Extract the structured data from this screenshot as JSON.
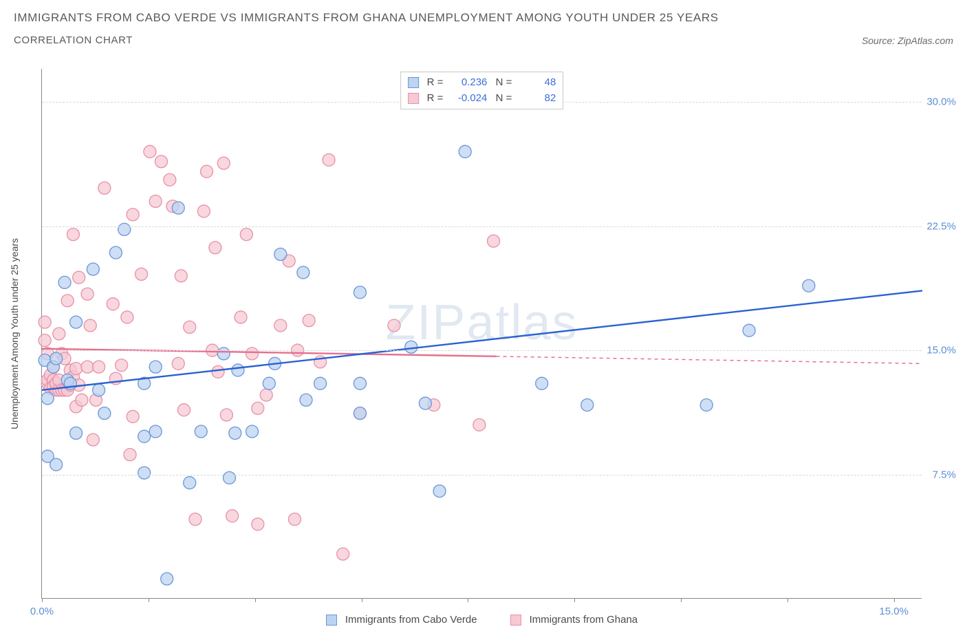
{
  "header": {
    "title": "IMMIGRANTS FROM CABO VERDE VS IMMIGRANTS FROM GHANA UNEMPLOYMENT AMONG YOUTH UNDER 25 YEARS",
    "subtitle": "CORRELATION CHART",
    "source_label": "Source:",
    "source_name": "ZipAtlas.com"
  },
  "chart": {
    "type": "scatter",
    "y_axis_label": "Unemployment Among Youth under 25 years",
    "watermark_a": "ZIP",
    "watermark_b": "atlas",
    "xlim": [
      0,
      15.5
    ],
    "ylim": [
      0,
      32
    ],
    "y_ticks": [
      7.5,
      15.0,
      22.5,
      30.0
    ],
    "y_tick_labels": [
      "7.5%",
      "15.0%",
      "22.5%",
      "30.0%"
    ],
    "x_ticks": [
      0,
      1.875,
      3.75,
      5.625,
      7.5,
      9.375,
      11.25,
      13.125,
      15.0
    ],
    "x_tick_labels_shown": {
      "0": "0.0%",
      "15.0": "15.0%"
    },
    "grid_color": "#d8d8d8",
    "axis_color": "#888888",
    "background_color": "#ffffff",
    "tick_label_color": "#5b8fd6",
    "series": {
      "cabo_verde": {
        "label": "Immigrants from Cabo Verde",
        "R": "0.236",
        "N": "48",
        "fill": "#bcd3f2",
        "stroke": "#6a96d6",
        "line_color": "#2a62d0",
        "trend": {
          "x1": 0,
          "y1": 12.6,
          "x2": 15.5,
          "y2": 18.6,
          "solid_until_x": 15.5
        },
        "points": [
          [
            0.05,
            14.4
          ],
          [
            0.1,
            12.1
          ],
          [
            0.1,
            8.6
          ],
          [
            0.2,
            14.0
          ],
          [
            0.25,
            14.5
          ],
          [
            0.25,
            8.1
          ],
          [
            0.4,
            19.1
          ],
          [
            0.45,
            13.2
          ],
          [
            0.5,
            13.0
          ],
          [
            0.6,
            10.0
          ],
          [
            0.6,
            16.7
          ],
          [
            0.9,
            19.9
          ],
          [
            1.0,
            12.6
          ],
          [
            1.1,
            11.2
          ],
          [
            1.3,
            20.9
          ],
          [
            1.45,
            22.3
          ],
          [
            1.8,
            13.0
          ],
          [
            1.8,
            9.8
          ],
          [
            1.8,
            7.6
          ],
          [
            2.0,
            14.0
          ],
          [
            2.0,
            10.1
          ],
          [
            2.4,
            23.6
          ],
          [
            2.6,
            7.0
          ],
          [
            2.8,
            10.1
          ],
          [
            2.2,
            1.2
          ],
          [
            3.2,
            14.8
          ],
          [
            3.3,
            7.3
          ],
          [
            3.4,
            10.0
          ],
          [
            3.45,
            13.8
          ],
          [
            3.7,
            10.1
          ],
          [
            4.0,
            13.0
          ],
          [
            4.2,
            20.8
          ],
          [
            4.1,
            14.2
          ],
          [
            4.6,
            19.7
          ],
          [
            4.65,
            12.0
          ],
          [
            4.9,
            13.0
          ],
          [
            5.6,
            18.5
          ],
          [
            5.6,
            13.0
          ],
          [
            5.6,
            11.2
          ],
          [
            6.5,
            15.2
          ],
          [
            6.75,
            11.8
          ],
          [
            7.45,
            27.0
          ],
          [
            8.8,
            13.0
          ],
          [
            9.6,
            11.7
          ],
          [
            11.7,
            11.7
          ],
          [
            12.45,
            16.2
          ],
          [
            13.5,
            18.9
          ],
          [
            7.0,
            6.5
          ]
        ]
      },
      "ghana": {
        "label": "Immigrants from Ghana",
        "R": "-0.024",
        "N": "82",
        "fill": "#f6c9d4",
        "stroke": "#e890a6",
        "line_color": "#e76f8e",
        "trend": {
          "x1": 0,
          "y1": 15.1,
          "x2": 15.5,
          "y2": 14.2,
          "solid_until_x": 8.0
        },
        "points": [
          [
            0.05,
            16.7
          ],
          [
            0.05,
            15.6
          ],
          [
            0.1,
            14.8
          ],
          [
            0.1,
            13.0
          ],
          [
            0.1,
            13.2
          ],
          [
            0.15,
            12.7
          ],
          [
            0.15,
            13.5
          ],
          [
            0.2,
            13.2
          ],
          [
            0.2,
            12.8
          ],
          [
            0.2,
            14.0
          ],
          [
            0.25,
            12.6
          ],
          [
            0.25,
            13.0
          ],
          [
            0.3,
            12.6
          ],
          [
            0.3,
            13.2
          ],
          [
            0.3,
            16.0
          ],
          [
            0.35,
            12.6
          ],
          [
            0.35,
            14.8
          ],
          [
            0.4,
            12.6
          ],
          [
            0.4,
            14.5
          ],
          [
            0.45,
            12.6
          ],
          [
            0.45,
            18.0
          ],
          [
            0.5,
            12.9
          ],
          [
            0.5,
            13.8
          ],
          [
            0.55,
            13.4
          ],
          [
            0.55,
            22.0
          ],
          [
            0.6,
            11.6
          ],
          [
            0.6,
            13.9
          ],
          [
            0.65,
            12.9
          ],
          [
            0.65,
            19.4
          ],
          [
            0.7,
            12.0
          ],
          [
            0.8,
            14.0
          ],
          [
            0.8,
            18.4
          ],
          [
            0.85,
            16.5
          ],
          [
            0.9,
            9.6
          ],
          [
            0.95,
            12.0
          ],
          [
            1.0,
            14.0
          ],
          [
            1.1,
            24.8
          ],
          [
            1.25,
            17.8
          ],
          [
            1.3,
            13.3
          ],
          [
            1.4,
            14.1
          ],
          [
            1.5,
            17.0
          ],
          [
            1.55,
            8.7
          ],
          [
            1.6,
            23.2
          ],
          [
            1.6,
            11.0
          ],
          [
            1.75,
            19.6
          ],
          [
            1.9,
            27.0
          ],
          [
            2.0,
            24.0
          ],
          [
            2.1,
            26.4
          ],
          [
            2.25,
            25.3
          ],
          [
            2.3,
            23.7
          ],
          [
            2.4,
            14.2
          ],
          [
            2.45,
            19.5
          ],
          [
            2.5,
            11.4
          ],
          [
            2.6,
            16.4
          ],
          [
            2.7,
            4.8
          ],
          [
            2.85,
            23.4
          ],
          [
            2.9,
            25.8
          ],
          [
            3.0,
            15.0
          ],
          [
            3.05,
            21.2
          ],
          [
            3.1,
            13.7
          ],
          [
            3.2,
            26.3
          ],
          [
            3.25,
            11.1
          ],
          [
            3.35,
            5.0
          ],
          [
            3.5,
            17.0
          ],
          [
            3.6,
            22.0
          ],
          [
            3.7,
            14.8
          ],
          [
            3.8,
            11.5
          ],
          [
            3.8,
            4.5
          ],
          [
            3.95,
            12.3
          ],
          [
            4.2,
            16.5
          ],
          [
            4.35,
            20.4
          ],
          [
            4.45,
            4.8
          ],
          [
            4.5,
            15.0
          ],
          [
            4.7,
            16.8
          ],
          [
            4.9,
            14.3
          ],
          [
            5.05,
            26.5
          ],
          [
            5.3,
            2.7
          ],
          [
            5.6,
            11.2
          ],
          [
            6.2,
            16.5
          ],
          [
            6.9,
            11.7
          ],
          [
            7.7,
            10.5
          ],
          [
            7.95,
            21.6
          ]
        ]
      }
    },
    "marker_radius": 9,
    "marker_stroke_width": 1.3,
    "trend_line_width": 2.4,
    "legend_border_color": "#c8c8c8",
    "title_color": "#5a5a5a",
    "axis_label_color": "#4a4a4a"
  }
}
